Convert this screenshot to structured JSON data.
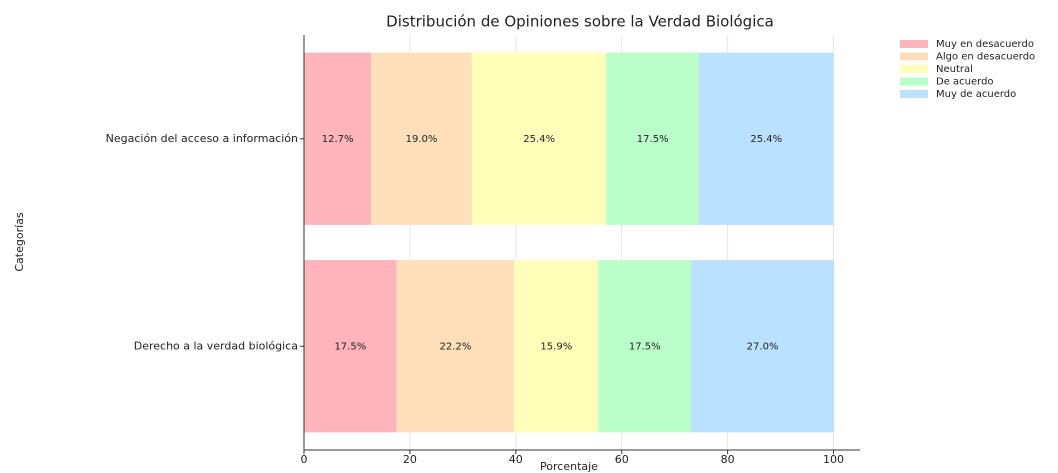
{
  "chart_data": {
    "type": "stacked_barh",
    "title": "Distribución de Opiniones sobre la Verdad Biológica",
    "x_label": "Porcentaje",
    "y_label": "Categorías",
    "categories": [
      "Negación del acceso a información",
      "Derecho a la verdad biológica"
    ],
    "series": [
      {
        "name": "Muy en desacuerdo",
        "color": "#ffb3ba",
        "values": [
          12.7,
          17.5
        ],
        "value_labels": [
          "12.7%",
          "17.5%"
        ]
      },
      {
        "name": "Algo en desacuerdo",
        "color": "#ffdfba",
        "values": [
          19.0,
          22.2
        ],
        "value_labels": [
          "19.0%",
          "22.2%"
        ]
      },
      {
        "name": "Neutral",
        "color": "#ffffba",
        "values": [
          25.4,
          15.9
        ],
        "value_labels": [
          "25.4%",
          "15.9%"
        ]
      },
      {
        "name": "De acuerdo",
        "color": "#baffc9",
        "values": [
          17.5,
          17.5
        ],
        "value_labels": [
          "17.5%",
          "17.5%"
        ]
      },
      {
        "name": "Muy de acuerdo",
        "color": "#bae1ff",
        "values": [
          25.4,
          27.0
        ],
        "value_labels": [
          "25.4%",
          "27.0%"
        ]
      }
    ],
    "xlim": [
      0,
      105
    ],
    "xticks": [
      0,
      20,
      40,
      60,
      80,
      100
    ],
    "grid": true,
    "legend": "upper right"
  }
}
